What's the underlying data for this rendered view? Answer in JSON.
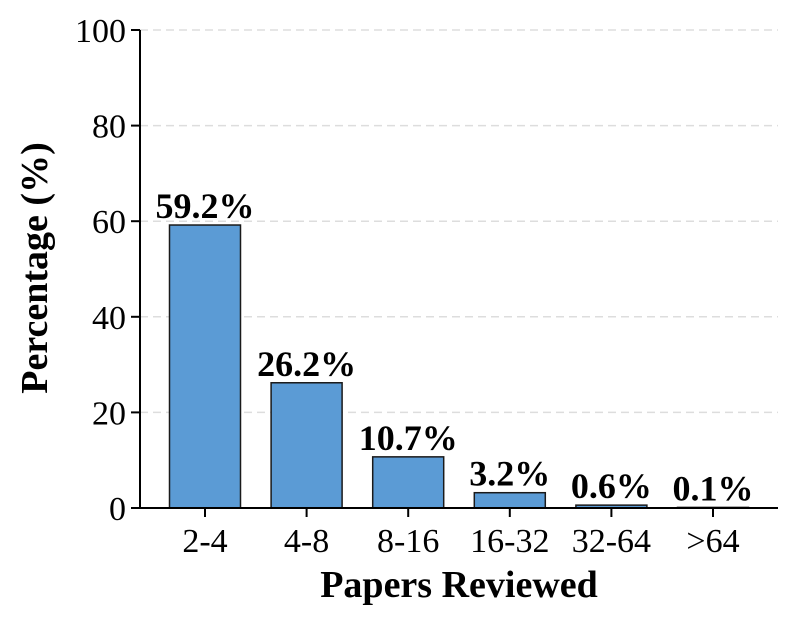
{
  "chart_data": {
    "type": "bar",
    "title": "",
    "xlabel": "Papers Reviewed",
    "ylabel": "Percentage (%)",
    "categories": [
      "2-4",
      "4-8",
      "8-16",
      "16-32",
      "32-64",
      ">64"
    ],
    "values": [
      59.2,
      26.2,
      10.7,
      3.2,
      0.6,
      0.1
    ],
    "data_labels": [
      "59.2%",
      "26.2%",
      "10.7%",
      "3.2%",
      "0.6%",
      "0.1%"
    ],
    "ylim": [
      0,
      100
    ],
    "yticks": [
      0,
      20,
      40,
      60,
      80,
      100
    ],
    "grid": "horizontal dashed",
    "colors": {
      "bar": "#5b9bd5",
      "bar_edge": "#1a1a1a",
      "grid": "#dddddd",
      "axis": "#000000"
    }
  }
}
